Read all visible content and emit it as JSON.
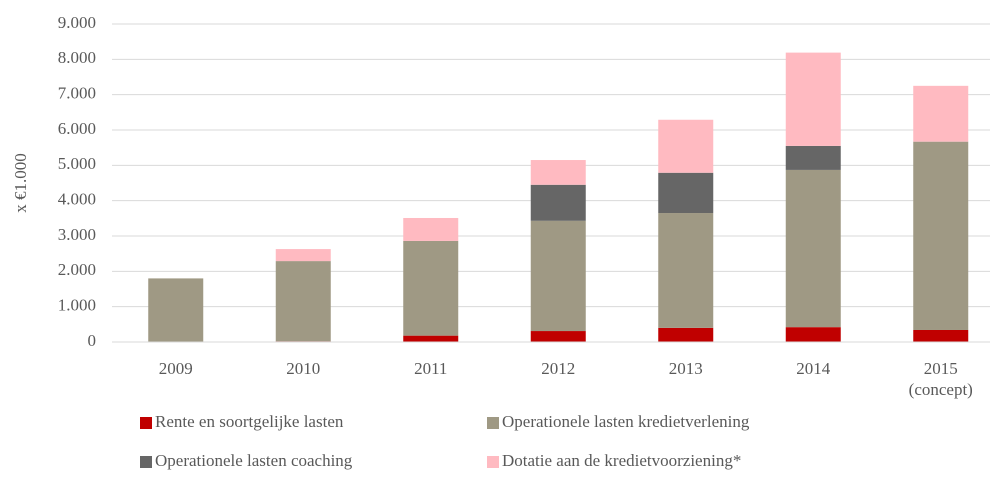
{
  "chart_data": {
    "type": "stacked_bar",
    "y_label": "x €1.000",
    "categories": [
      "2009",
      "2010",
      "2011",
      "2012",
      "2013",
      "2014",
      "2015 (concept)"
    ],
    "series": [
      {
        "name": "Rente en soortgelijke lasten",
        "color": "#c00000",
        "values": [
          0,
          20,
          180,
          310,
          400,
          420,
          340
        ]
      },
      {
        "name": "Operationele lasten kredietverlening",
        "color": "#9f9984",
        "values": [
          1800,
          2270,
          2680,
          3120,
          3250,
          4450,
          5330
        ]
      },
      {
        "name": "Operationele lasten coaching",
        "color": "#666666",
        "values": [
          0,
          0,
          0,
          1020,
          1140,
          680,
          0
        ]
      },
      {
        "name": "Dotatie aan de kredietvoorziening*",
        "color": "#ffbac1",
        "values": [
          0,
          340,
          650,
          700,
          1500,
          2640,
          1580
        ]
      }
    ],
    "ylim": [
      0,
      9000
    ],
    "yticks": [
      0,
      {
        "value": 1000,
        "label": "1.000"
      },
      {
        "value": 2000,
        "label": "2.000"
      },
      {
        "value": 3000,
        "label": "3.000"
      },
      {
        "value": 4000,
        "label": "4.000"
      },
      {
        "value": 5000,
        "label": "5.000"
      },
      {
        "value": 6000,
        "label": "6.000"
      },
      {
        "value": 7000,
        "label": "7.000"
      },
      {
        "value": 8000,
        "label": "8.000"
      },
      {
        "value": 9000,
        "label": "9.000"
      }
    ],
    "grid": true
  }
}
